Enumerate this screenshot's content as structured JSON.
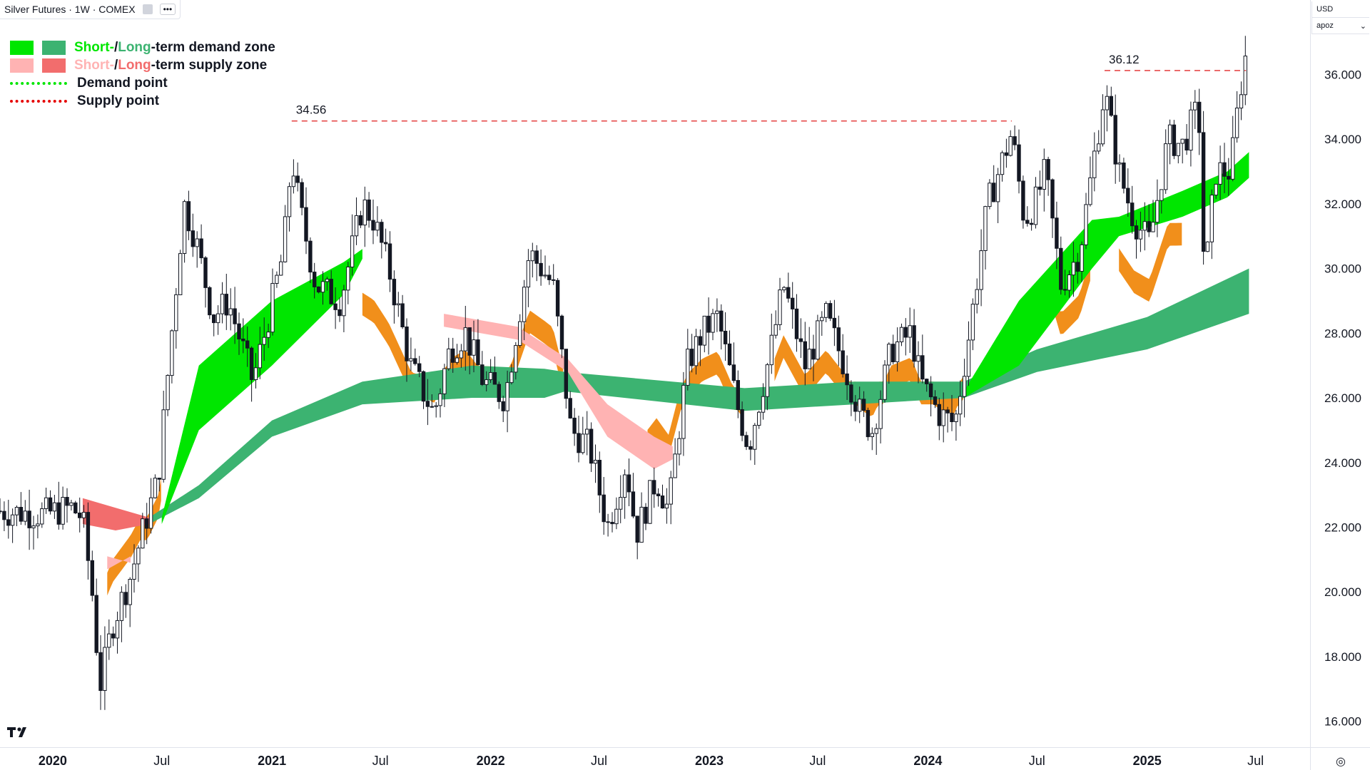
{
  "header": {
    "title": "Silver Futures · 1W · COMEX",
    "more_label": "•••"
  },
  "legend": {
    "items": [
      {
        "kind": "zone",
        "colors": [
          "#00e600",
          "#3cb371"
        ],
        "parts": [
          {
            "text": "Short-",
            "color": "#00e600"
          },
          {
            "text": " / ",
            "color": "#131722"
          },
          {
            "text": "Long",
            "color": "#3cb371"
          },
          {
            "text": "-term demand zone",
            "color": "#131722"
          }
        ]
      },
      {
        "kind": "zone",
        "colors": [
          "#ffb3b3",
          "#f26d6d"
        ],
        "parts": [
          {
            "text": "Short-",
            "color": "#ffb3b3"
          },
          {
            "text": " / ",
            "color": "#131722"
          },
          {
            "text": "Long",
            "color": "#f26d6d"
          },
          {
            "text": "-term supply zone",
            "color": "#131722"
          }
        ]
      },
      {
        "kind": "line",
        "color": "#00e600",
        "parts": [
          {
            "text": "Demand point",
            "color": "#131722"
          }
        ]
      },
      {
        "kind": "line",
        "color": "#e60000",
        "parts": [
          {
            "text": "Supply point",
            "color": "#131722"
          }
        ]
      }
    ]
  },
  "scale": {
    "currency": "USD",
    "mode": "apoz"
  },
  "colors": {
    "short_demand": "#00e600",
    "long_demand": "#3cb371",
    "short_supply": "#ffb3b3",
    "long_supply": "#f26d6d",
    "transition": "#f0890f",
    "candle": "#131722",
    "supply_line": "#e64a4a"
  },
  "chart_data": {
    "type": "candlestick",
    "title": "Silver Futures · 1W · COMEX",
    "ylim": [
      15.2,
      38.3
    ],
    "y_ticks": [
      "16.000",
      "18.000",
      "20.000",
      "22.000",
      "24.000",
      "26.000",
      "28.000",
      "30.000",
      "32.000",
      "34.000",
      "36.000"
    ],
    "x_range": [
      "2019-10-05",
      "2025-09-30"
    ],
    "x_ticks": [
      {
        "label": "2020",
        "date": "2020-01-01"
      },
      {
        "label": "Jul",
        "date": "2020-07-01"
      },
      {
        "label": "2021",
        "date": "2021-01-01"
      },
      {
        "label": "Jul",
        "date": "2021-07-01"
      },
      {
        "label": "2022",
        "date": "2022-01-01"
      },
      {
        "label": "Jul",
        "date": "2022-07-01"
      },
      {
        "label": "2023",
        "date": "2023-01-01"
      },
      {
        "label": "Jul",
        "date": "2023-07-01"
      },
      {
        "label": "2024",
        "date": "2024-01-01"
      },
      {
        "label": "Jul",
        "date": "2024-07-01"
      },
      {
        "label": "2025",
        "date": "2025-01-01"
      },
      {
        "label": "Jul",
        "date": "2025-07-01"
      }
    ],
    "close_path": [
      [
        "2019-10-05",
        22.5
      ],
      [
        "2019-12-15",
        22.4
      ],
      [
        "2020-02-01",
        22.6
      ],
      [
        "2020-02-20",
        22.3
      ],
      [
        "2020-03-10",
        19.5
      ],
      [
        "2020-03-19",
        17.0
      ],
      [
        "2020-04-10",
        19.0
      ],
      [
        "2020-05-10",
        20.5
      ],
      [
        "2020-06-01",
        22.0
      ],
      [
        "2020-06-25",
        23.5
      ],
      [
        "2020-07-15",
        27.5
      ],
      [
        "2020-08-07",
        32.0
      ],
      [
        "2020-08-25",
        31.0
      ],
      [
        "2020-09-25",
        28.5
      ],
      [
        "2020-10-20",
        29.0
      ],
      [
        "2020-11-30",
        26.5
      ],
      [
        "2020-12-20",
        28.0
      ],
      [
        "2021-01-20",
        30.5
      ],
      [
        "2021-02-03",
        33.5
      ],
      [
        "2021-02-15",
        32.0
      ],
      [
        "2021-03-15",
        29.5
      ],
      [
        "2021-04-25",
        29.0
      ],
      [
        "2021-06-01",
        32.0
      ],
      [
        "2021-06-20",
        31.5
      ],
      [
        "2021-07-15",
        30.0
      ],
      [
        "2021-08-20",
        27.0
      ],
      [
        "2021-09-28",
        25.5
      ],
      [
        "2021-10-25",
        27.5
      ],
      [
        "2021-11-20",
        28.0
      ],
      [
        "2021-12-20",
        26.5
      ],
      [
        "2022-01-25",
        26.0
      ],
      [
        "2022-03-07",
        30.5
      ],
      [
        "2022-04-15",
        29.5
      ],
      [
        "2022-05-15",
        25.0
      ],
      [
        "2022-06-15",
        24.5
      ],
      [
        "2022-07-15",
        22.0
      ],
      [
        "2022-08-15",
        24.0
      ],
      [
        "2022-09-01",
        21.8
      ],
      [
        "2022-10-05",
        23.5
      ],
      [
        "2022-10-25",
        22.5
      ],
      [
        "2022-11-25",
        27.0
      ],
      [
        "2022-12-20",
        28.0
      ],
      [
        "2023-01-15",
        28.5
      ],
      [
        "2023-02-20",
        25.5
      ],
      [
        "2023-03-08",
        24.5
      ],
      [
        "2023-04-14",
        27.5
      ],
      [
        "2023-05-05",
        29.5
      ],
      [
        "2023-06-10",
        27.0
      ],
      [
        "2023-07-15",
        28.5
      ],
      [
        "2023-08-15",
        27.0
      ],
      [
        "2023-09-10",
        25.5
      ],
      [
        "2023-09-30",
        25.0
      ],
      [
        "2023-11-01",
        27.5
      ],
      [
        "2023-12-04",
        28.0
      ],
      [
        "2023-12-20",
        26.5
      ],
      [
        "2024-01-20",
        25.5
      ],
      [
        "2024-02-15",
        25.2
      ],
      [
        "2024-03-10",
        28.0
      ],
      [
        "2024-04-10",
        32.0
      ],
      [
        "2024-05-20",
        34.2
      ],
      [
        "2024-06-10",
        31.5
      ],
      [
        "2024-06-28",
        32.0
      ],
      [
        "2024-07-15",
        33.0
      ],
      [
        "2024-08-10",
        29.5
      ],
      [
        "2024-09-10",
        30.5
      ],
      [
        "2024-10-05",
        33.5
      ],
      [
        "2024-10-22",
        35.5
      ],
      [
        "2024-11-15",
        33.0
      ],
      [
        "2024-12-10",
        31.5
      ],
      [
        "2025-01-05",
        30.8
      ],
      [
        "2025-02-05",
        34.0
      ],
      [
        "2025-03-01",
        33.8
      ],
      [
        "2025-03-28",
        35.0
      ],
      [
        "2025-04-07",
        29.5
      ],
      [
        "2025-04-25",
        33.0
      ],
      [
        "2025-05-20",
        33.0
      ],
      [
        "2025-06-05",
        35.5
      ],
      [
        "2025-06-20",
        37.2
      ]
    ],
    "long_demand_band": [
      [
        "2020-06-10",
        22.3,
        22.1
      ],
      [
        "2020-09-01",
        23.3,
        22.9
      ],
      [
        "2021-01-01",
        25.3,
        24.8
      ],
      [
        "2021-06-01",
        26.5,
        25.8
      ],
      [
        "2021-12-01",
        27.0,
        26.0
      ],
      [
        "2022-04-01",
        26.9,
        26.0
      ],
      [
        "2022-05-05",
        26.8,
        26.2
      ],
      [
        "2023-03-01",
        26.3,
        25.6
      ],
      [
        "2023-09-01",
        26.5,
        25.8
      ],
      [
        "2024-03-01",
        26.5,
        26.0
      ],
      [
        "2024-07-01",
        27.5,
        26.8
      ],
      [
        "2025-01-01",
        28.5,
        27.5
      ],
      [
        "2025-06-20",
        30.0,
        28.6
      ]
    ],
    "long_supply_band": [
      [
        "2020-02-20",
        22.9,
        22.1
      ],
      [
        "2020-04-15",
        22.6,
        21.9
      ],
      [
        "2020-06-10",
        22.3,
        22.1
      ]
    ],
    "short_demand_band": [
      [
        "2020-07-01",
        22.3,
        22.1
      ],
      [
        "2020-09-01",
        27.0,
        25.0
      ],
      [
        "2021-01-01",
        29.0,
        27.0
      ],
      [
        "2021-05-01",
        30.2,
        29.2
      ],
      [
        "2021-06-01",
        30.6,
        30.3
      ],
      [
        "2024-03-01",
        26.2,
        26.0
      ],
      [
        "2024-06-01",
        29.0,
        27.0
      ],
      [
        "2024-10-01",
        31.5,
        30.0
      ],
      [
        "2024-11-15",
        31.6,
        31.0
      ],
      [
        "2025-03-01",
        32.4,
        31.6
      ],
      [
        "2025-05-15",
        33.0,
        32.2
      ],
      [
        "2025-06-20",
        33.6,
        32.8
      ]
    ],
    "short_supply_band": [
      [
        "2020-04-01",
        21.1,
        20.7
      ],
      [
        "2020-05-10",
        20.9,
        21.1
      ],
      [
        "2021-10-15",
        28.6,
        28.2
      ],
      [
        "2022-02-15",
        28.2,
        27.8
      ],
      [
        "2022-05-10",
        27.2,
        26.8
      ],
      [
        "2022-07-15",
        25.8,
        24.8
      ],
      [
        "2022-10-01",
        24.8,
        23.8
      ],
      [
        "2022-11-01",
        24.5,
        24.1
      ]
    ],
    "annotations": [
      {
        "label": "34.56",
        "value": 34.56,
        "from": "2021-02-03",
        "to": "2024-05-20"
      },
      {
        "label": "36.12",
        "value": 36.12,
        "from": "2024-10-22",
        "to": "2025-06-15"
      }
    ]
  }
}
